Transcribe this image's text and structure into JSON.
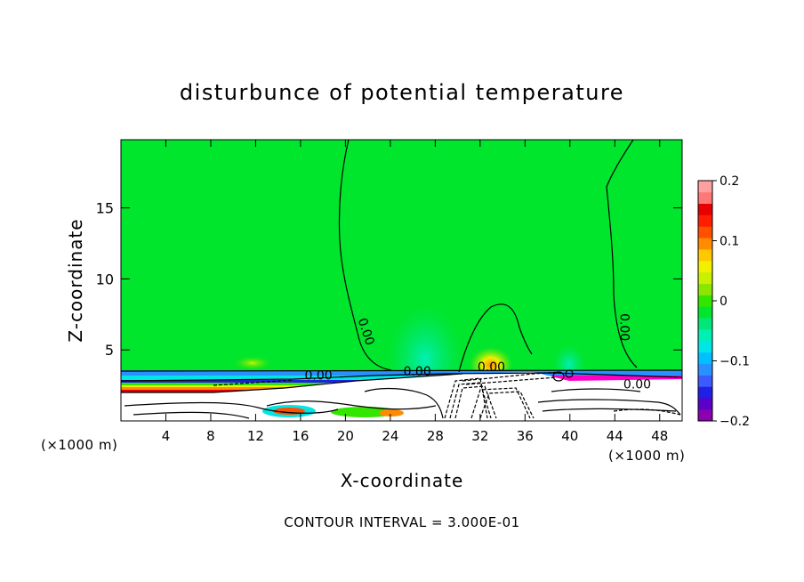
{
  "chart_data": {
    "type": "heatmap",
    "title": "disturbunce of potential temperature",
    "xlabel": "X-coordinate",
    "ylabel": "Z-coordinate",
    "x_unit_left": "(×1000 m)",
    "x_unit_right": "(×1000 m)",
    "footer": "CONTOUR INTERVAL = 3.000E-01",
    "xlim": [
      0,
      50
    ],
    "ylim": [
      0,
      19.8
    ],
    "x_ticks": [
      {
        "value": 4,
        "label": "4"
      },
      {
        "value": 8,
        "label": "8"
      },
      {
        "value": 12,
        "label": "12"
      },
      {
        "value": 16,
        "label": "16"
      },
      {
        "value": 20,
        "label": "20"
      },
      {
        "value": 24,
        "label": "24"
      },
      {
        "value": 28,
        "label": "28"
      },
      {
        "value": 32,
        "label": "32"
      },
      {
        "value": 36,
        "label": "36"
      },
      {
        "value": 40,
        "label": "40"
      },
      {
        "value": 44,
        "label": "44"
      },
      {
        "value": 48,
        "label": "48"
      }
    ],
    "y_ticks": [
      {
        "value": 5,
        "label": "5"
      },
      {
        "value": 10,
        "label": "10"
      },
      {
        "value": 15,
        "label": "15"
      }
    ],
    "colorbar": {
      "min": -0.2,
      "max": 0.2,
      "labels": [
        {
          "value": 0.2,
          "label": "0.2"
        },
        {
          "value": 0.1,
          "label": "0.1"
        },
        {
          "value": 0,
          "label": "0"
        },
        {
          "value": -0.1,
          "label": "−0.1"
        },
        {
          "value": -0.2,
          "label": "−0.2"
        }
      ],
      "colors": [
        "#8b00b0",
        "#5a00c8",
        "#1f1fe6",
        "#3c5aff",
        "#2891ff",
        "#00c0ff",
        "#00e6e6",
        "#00f0b4",
        "#00e678",
        "#00e62d",
        "#32e600",
        "#8ce600",
        "#c8f000",
        "#f0f000",
        "#ffc800",
        "#ff8c00",
        "#ff5000",
        "#ff1e00",
        "#e60000",
        "#ff7878",
        "#ffa0a0"
      ]
    },
    "contour_labels": [
      {
        "text": "0.00",
        "x": 21.5,
        "z": 6.2,
        "rotate": 72
      },
      {
        "text": "0.00",
        "x": 17.6,
        "z": 2.9,
        "rotate": 0
      },
      {
        "text": "0.00",
        "x": 26.4,
        "z": 3.2,
        "rotate": 0
      },
      {
        "text": "0.00",
        "x": 33.0,
        "z": 3.5,
        "rotate": 0
      },
      {
        "text": "0.00",
        "x": 44.5,
        "z": 6.6,
        "rotate": 90
      },
      {
        "text": "0.00",
        "x": 46.0,
        "z": 2.3,
        "rotate": 0
      }
    ]
  }
}
